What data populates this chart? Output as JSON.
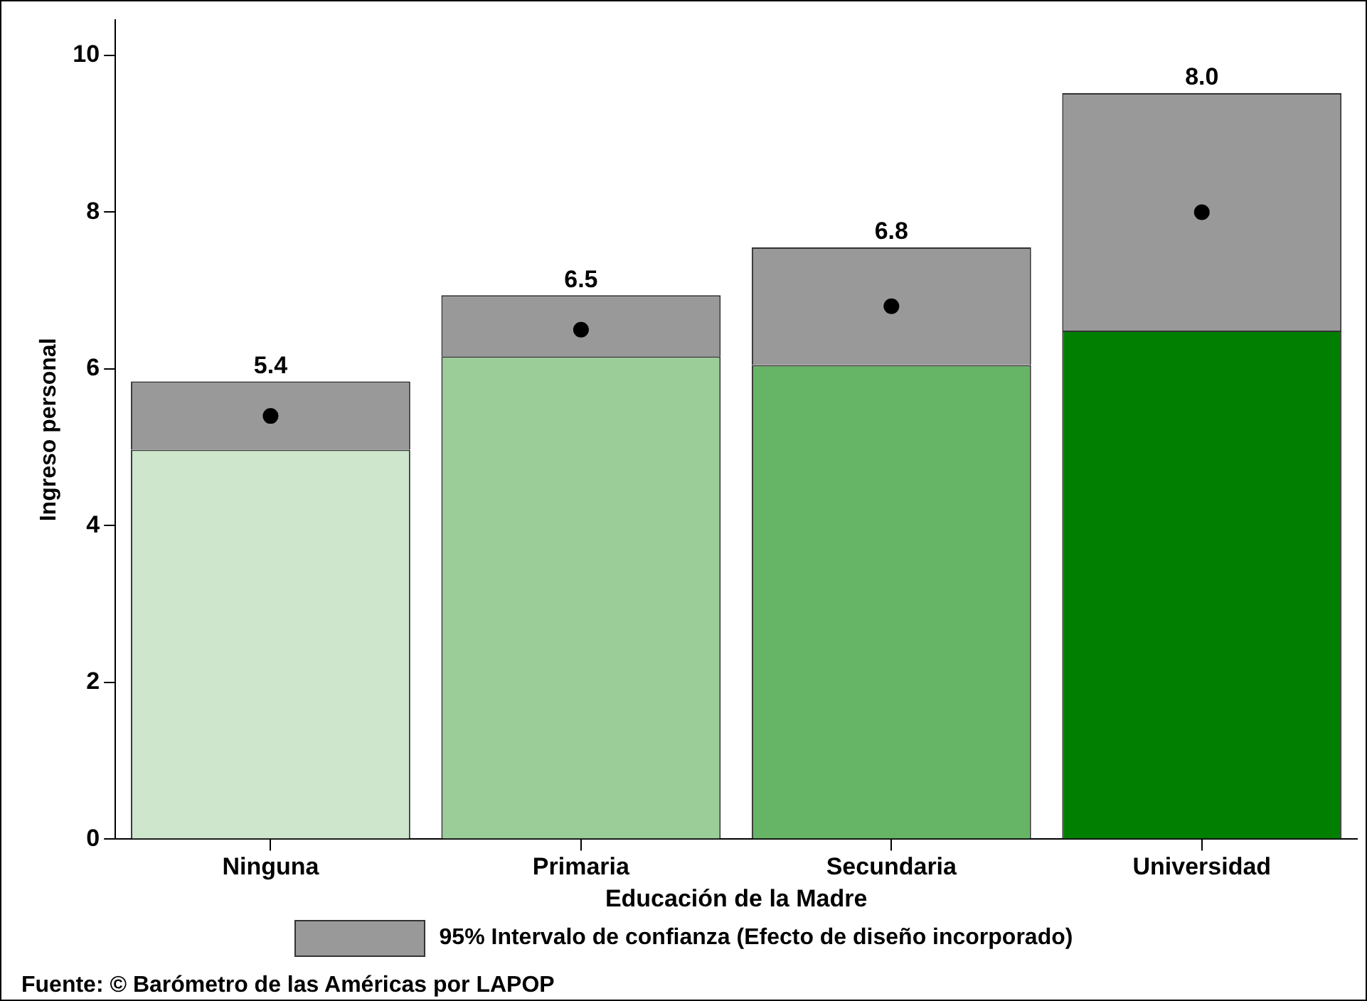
{
  "chart_data": {
    "type": "bar",
    "stacked": true,
    "xlabel": "Educación de la Madre",
    "ylabel": "Ingreso personal",
    "categories": [
      "Ninguna",
      "Primaria",
      "Secundaria",
      "Universidad"
    ],
    "series": [
      {
        "colors": [
          "#cde6cc",
          "#9bcd99",
          "#66b466",
          "#007f00"
        ],
        "values": [
          4.97,
          6.16,
          6.05,
          6.49
        ]
      },
      {
        "name": "95% Intervalo de confianza (Efecto de diseño incorporado)",
        "color": "#999999",
        "values": [
          0.87,
          0.78,
          1.5,
          3.03
        ]
      },
      {
        "type": "scatter",
        "color": "#000000",
        "x": [
          "Ninguna",
          "Primaria",
          "Secundaria",
          "Universidad"
        ],
        "values": [
          5.4,
          6.5,
          6.8,
          8.0
        ]
      }
    ],
    "ylim": [
      0,
      10.45
    ],
    "yticks": [
      0,
      2,
      4,
      6,
      8,
      10
    ],
    "grid": false,
    "legend": "bottom",
    "marker": "circle",
    "annotations": [
      {
        "text": "5.4",
        "x": "Ninguna",
        "y": 5.84
      },
      {
        "text": "6.5",
        "x": "Primaria",
        "y": 6.94
      },
      {
        "text": "6.8",
        "x": "Secundaria",
        "y": 7.55
      },
      {
        "text": "8.0",
        "x": "Universidad",
        "y": 9.52
      },
      "Fuente: © Barómetro de las Américas por LAPOP"
    ]
  }
}
